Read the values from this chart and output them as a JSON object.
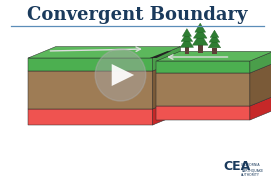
{
  "title": "Convergent Boundary",
  "title_fontsize": 13,
  "title_color": "#1a3a5c",
  "background_color": "#ffffff",
  "line_color": "#5b8db8",
  "cea_text": "CEA",
  "cea_subtext": "CALIFORNIA\nEARTHQUAKE\nAUTHORITY",
  "cea_color": "#1a3a5c",
  "grass_top": "#5cb85c",
  "grass_top_dark": "#4a9e4a",
  "grass_front": "#4caf50",
  "dirt_top": "#8B6B45",
  "dirt_top_dark": "#7a5a38",
  "dirt_front": "#9e7c55",
  "red_top": "#e53935",
  "red_top_dark": "#c62828",
  "red_front": "#ef5350",
  "outline_color": "#2a2a2a",
  "fault_color": "#222222",
  "play_circle_color": "#aaaaaa",
  "play_circle_alpha": 0.45,
  "play_tri_color": "#ffffff",
  "tree_trunk": "#5d4037",
  "tree_foliage": "#2e7d32",
  "tree_foliage_edge": "#1b5e20",
  "arrow_color": "#dddddd"
}
